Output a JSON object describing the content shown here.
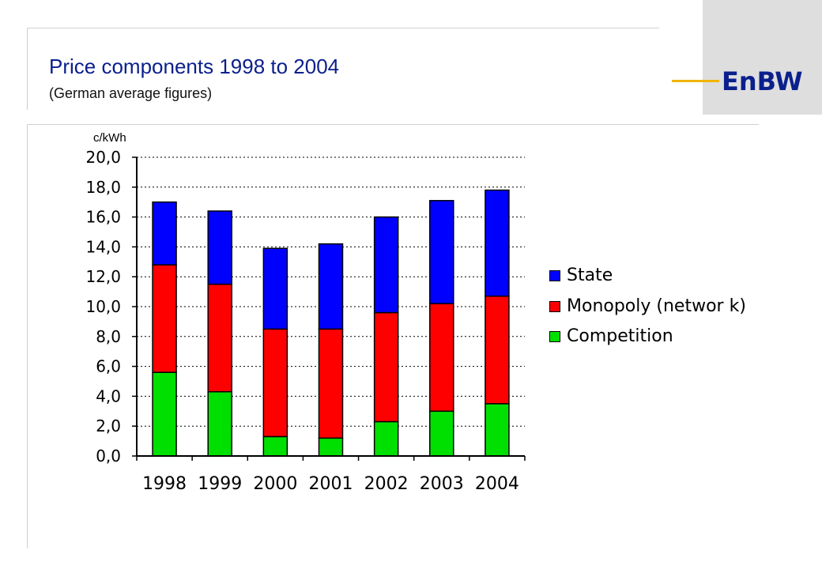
{
  "header": {
    "title": "Price components 1998 to 2004",
    "subtitle": "(German average figures)",
    "logo_text": "EnBW"
  },
  "colors": {
    "title": "#0b1f8c",
    "state": "#0000ff",
    "monopoly": "#ff0000",
    "competition": "#00e000",
    "logo_accent": "#f0b400"
  },
  "chart_data": {
    "type": "bar",
    "stacked": true,
    "unit_label": "c/kWh",
    "categories": [
      "1998",
      "1999",
      "2000",
      "2001",
      "2002",
      "2003",
      "2004"
    ],
    "series": [
      {
        "name": "Competition",
        "color": "#00e000",
        "values": [
          5.6,
          4.3,
          1.3,
          1.2,
          2.3,
          3.0,
          3.5
        ]
      },
      {
        "name": "Monopoly (network)",
        "color": "#ff0000",
        "values": [
          7.2,
          7.2,
          7.2,
          7.3,
          7.3,
          7.2,
          7.2
        ]
      },
      {
        "name": "State",
        "color": "#0000ff",
        "values": [
          4.2,
          4.9,
          5.4,
          5.7,
          6.4,
          6.9,
          7.1
        ]
      }
    ],
    "ylim": [
      0,
      20
    ],
    "yticks": [
      "0,0",
      "2,0",
      "4,0",
      "6,0",
      "8,0",
      "10,0",
      "12,0",
      "14,0",
      "16,0",
      "18,0",
      "20,0"
    ],
    "grid": true,
    "legend_position": "right",
    "legend_labels": [
      "State",
      "Monopoly (networ k)",
      "Competition"
    ]
  }
}
